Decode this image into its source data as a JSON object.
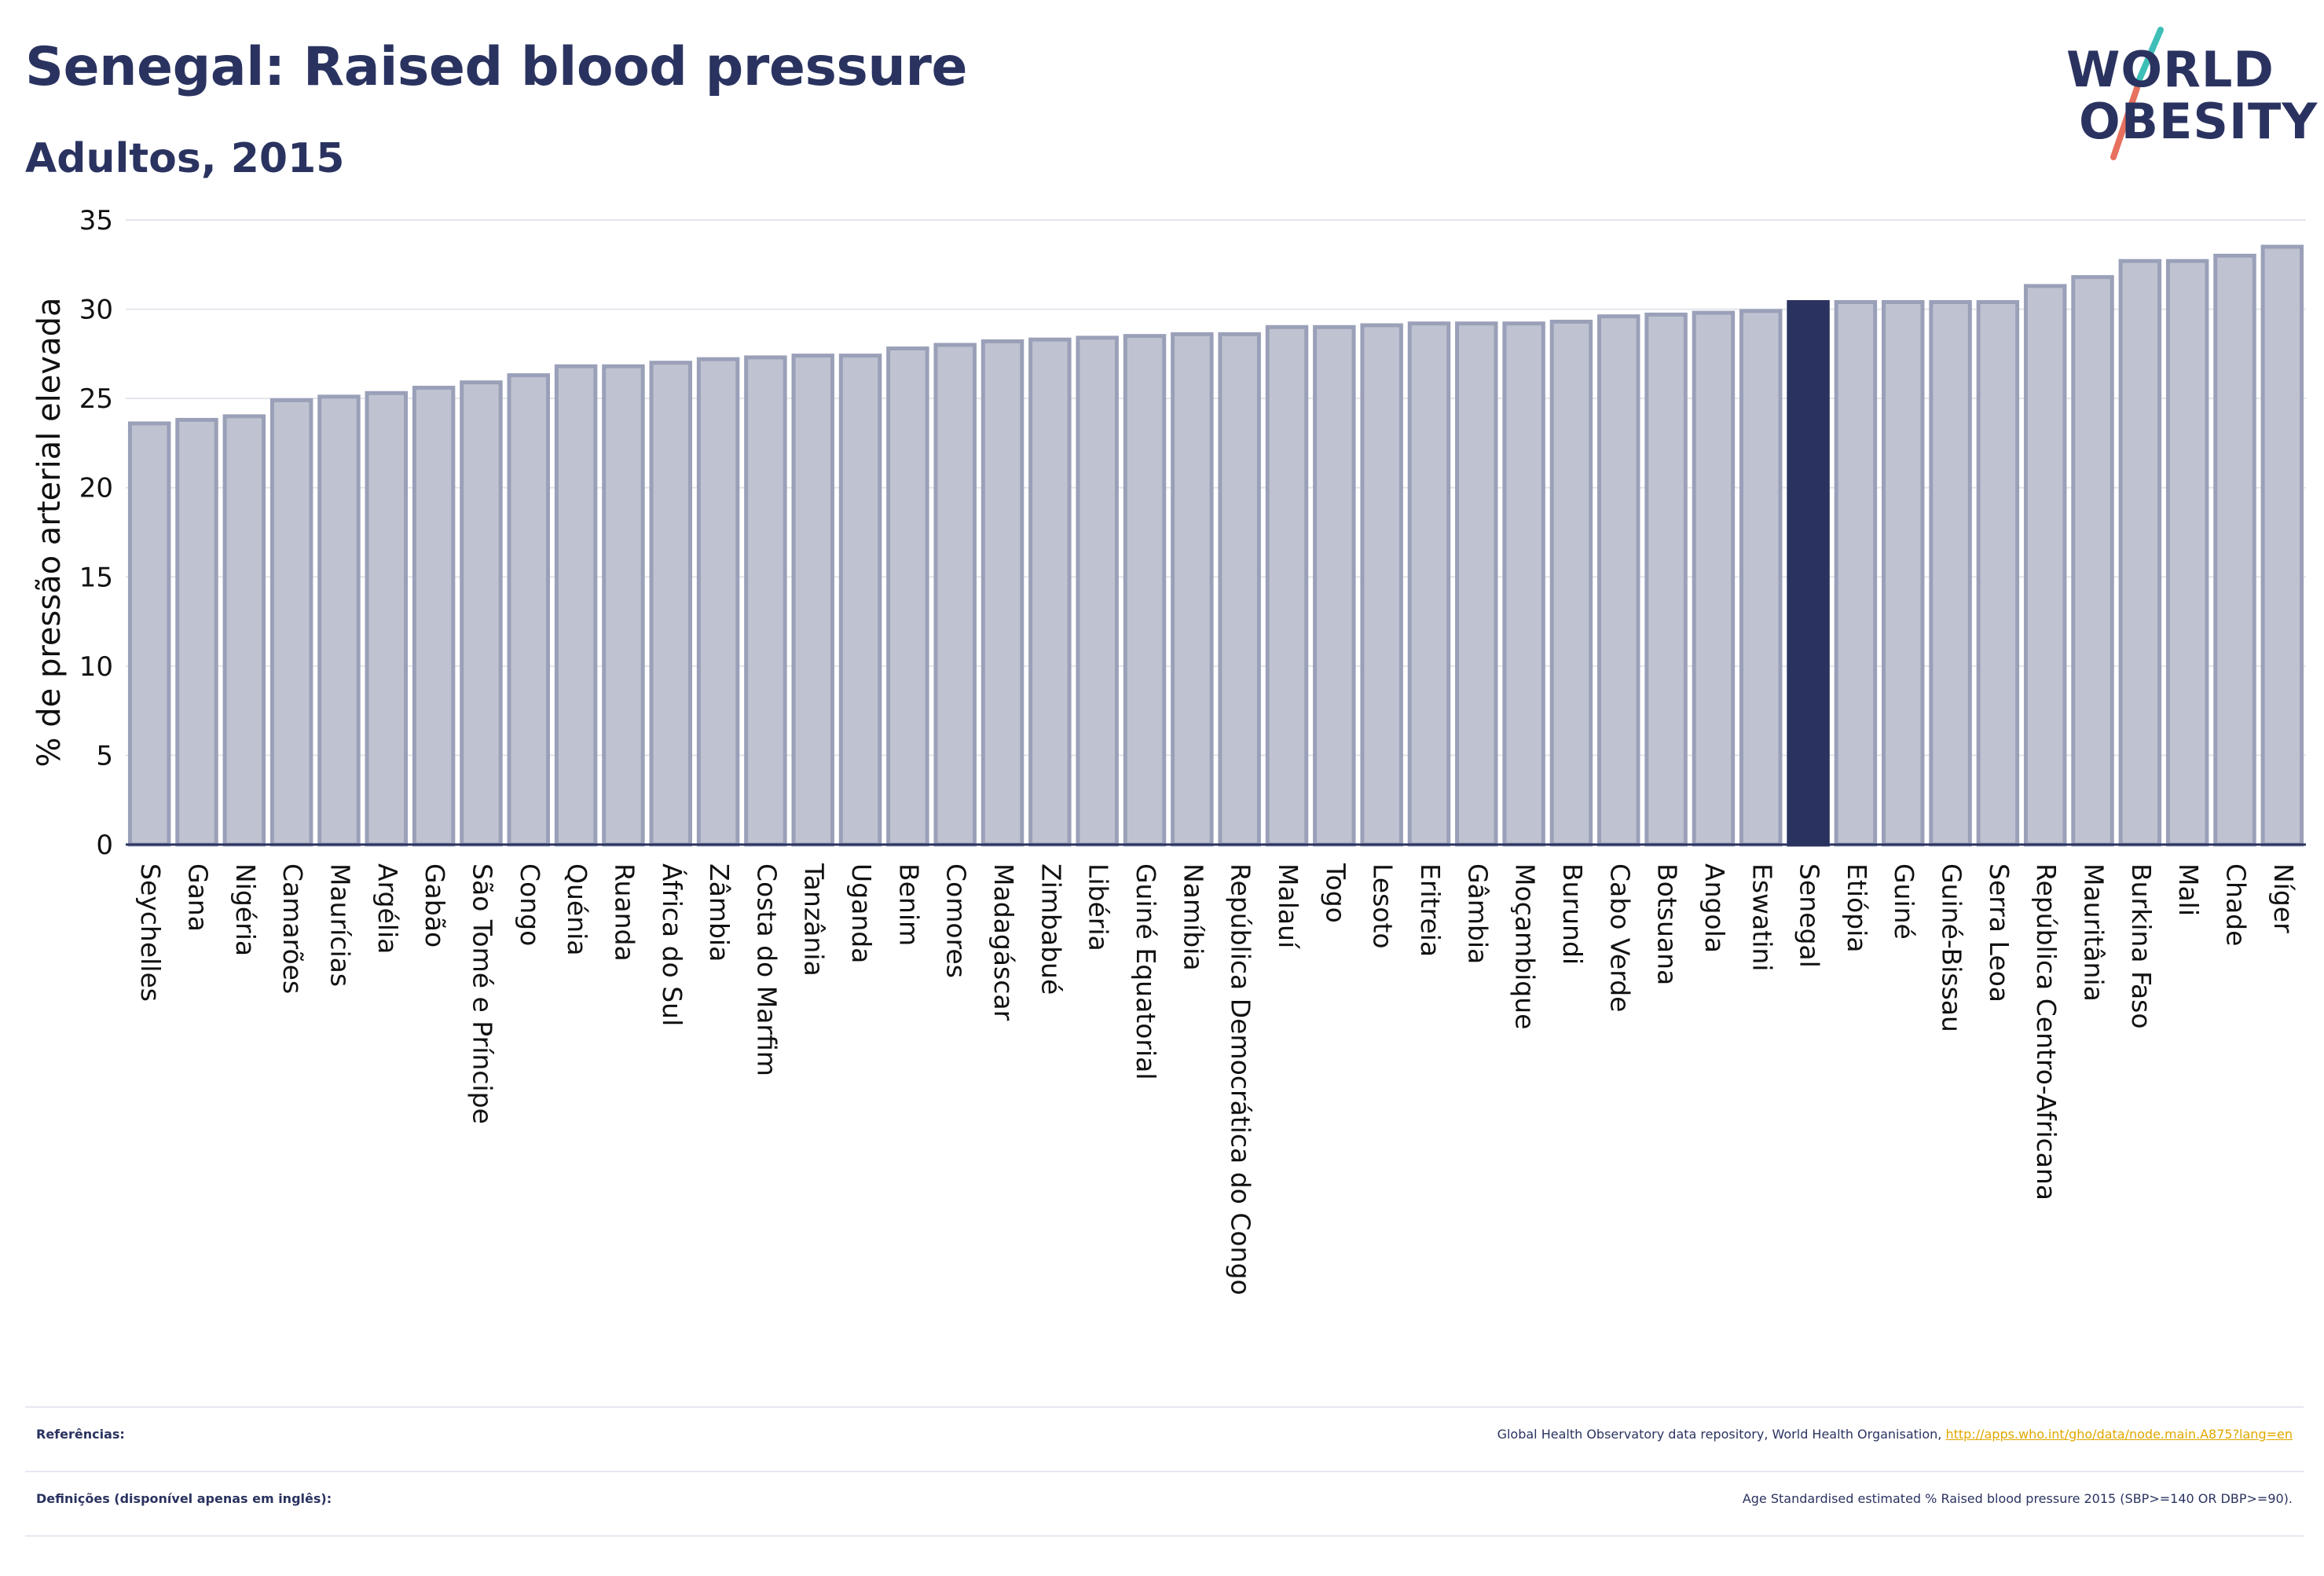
{
  "title": "Senegal: Raised blood pressure",
  "subtitle": "Adultos, 2015",
  "logo": {
    "line1": "WORLD",
    "line2": "OBESITY",
    "accent_colors": [
      "#3dbfb8",
      "#e8705e"
    ]
  },
  "colors": {
    "bar": "#bfc3d1",
    "bar_border": "#9aa0b8",
    "highlight": "#2a3360",
    "text": "#2a3360",
    "grid": "#e3e5ec",
    "link": "#e0a800"
  },
  "chart_data": {
    "type": "bar",
    "ylabel": "% de pressão arterial elevada",
    "xlabel": "",
    "ylim": [
      0,
      35
    ],
    "yticks": [
      0,
      5,
      10,
      15,
      20,
      25,
      30,
      35
    ],
    "grid": true,
    "highlight": "Senegal",
    "categories": [
      "Seychelles",
      "Gana",
      "Nigéria",
      "Camarões",
      "Maurícias",
      "Argélia",
      "Gabão",
      "São Tomé e Príncipe",
      "Congo",
      "Quénia",
      "Ruanda",
      "África do Sul",
      "Zâmbia",
      "Costa do Marfim",
      "Tanzânia",
      "Uganda",
      "Benim",
      "Comores",
      "Madagáscar",
      "Zimbabué",
      "Libéria",
      "Guiné Equatorial",
      "Namíbia",
      "República Democrática do Congo",
      "Malauí",
      "Togo",
      "Lesoto",
      "Eritreia",
      "Gâmbia",
      "Moçambique",
      "Burundi",
      "Cabo Verde",
      "Botsuana",
      "Angola",
      "Eswatini",
      "Senegal",
      "Etiópia",
      "Guiné",
      "Guiné-Bissau",
      "Serra Leoa",
      "República Centro-Africana",
      "Mauritânia",
      "Burkina Faso",
      "Mali",
      "Chade",
      "Níger"
    ],
    "values": [
      23.6,
      23.8,
      24.0,
      24.9,
      25.1,
      25.3,
      25.6,
      25.9,
      26.3,
      26.8,
      26.8,
      27.0,
      27.2,
      27.3,
      27.4,
      27.4,
      27.8,
      28.0,
      28.2,
      28.3,
      28.4,
      28.5,
      28.6,
      28.6,
      29.0,
      29.0,
      29.1,
      29.2,
      29.2,
      29.2,
      29.3,
      29.6,
      29.7,
      29.8,
      29.9,
      30.4,
      30.4,
      30.4,
      30.4,
      30.4,
      31.3,
      31.8,
      32.7,
      32.7,
      33.0,
      33.5
    ]
  },
  "footer": {
    "references_label": "Referências:",
    "references_text": "Global Health Observatory data repository, World Health Organisation,",
    "references_link": "http://apps.who.int/gho/data/node.main.A875?lang=en",
    "definitions_label": "Definições (disponível apenas em inglês):",
    "definitions_text": "Age Standardised estimated % Raised blood pressure 2015 (SBP>=140 OR DBP>=90)."
  }
}
